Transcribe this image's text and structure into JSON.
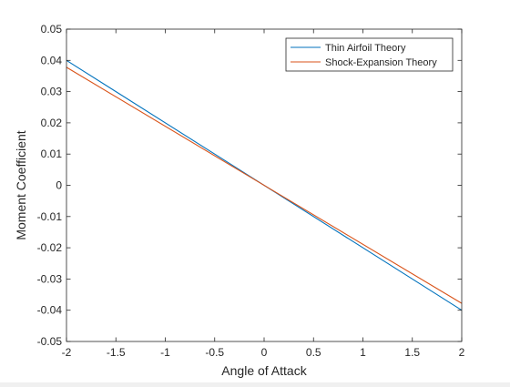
{
  "chart_data": {
    "type": "line",
    "title": "",
    "xlabel": "Angle of Attack",
    "ylabel": "Moment Coefficient",
    "xlim": [
      -2,
      2
    ],
    "ylim": [
      -0.05,
      0.05
    ],
    "xticks": [
      -2,
      -1.5,
      -1,
      -0.5,
      0,
      0.5,
      1,
      1.5,
      2
    ],
    "xtick_labels": [
      "-2",
      "-1.5",
      "-1",
      "-0.5",
      "0",
      "0.5",
      "1",
      "1.5",
      "2"
    ],
    "yticks": [
      -0.05,
      -0.04,
      -0.03,
      -0.02,
      -0.01,
      0,
      0.01,
      0.02,
      0.03,
      0.04,
      0.05
    ],
    "ytick_labels": [
      "-0.05",
      "-0.04",
      "-0.03",
      "-0.02",
      "-0.01",
      "0",
      "0.01",
      "0.02",
      "0.03",
      "0.04",
      "0.05"
    ],
    "grid": false,
    "legend_position": "top-right",
    "series": [
      {
        "name": "Thin Airfoil Theory",
        "color": "#0072BD",
        "x": [
          -2,
          2
        ],
        "y": [
          0.04,
          -0.04
        ]
      },
      {
        "name": "Shock-Expansion Theory",
        "color": "#D95319",
        "x": [
          -2,
          2
        ],
        "y": [
          0.0378,
          -0.0378
        ]
      }
    ]
  }
}
